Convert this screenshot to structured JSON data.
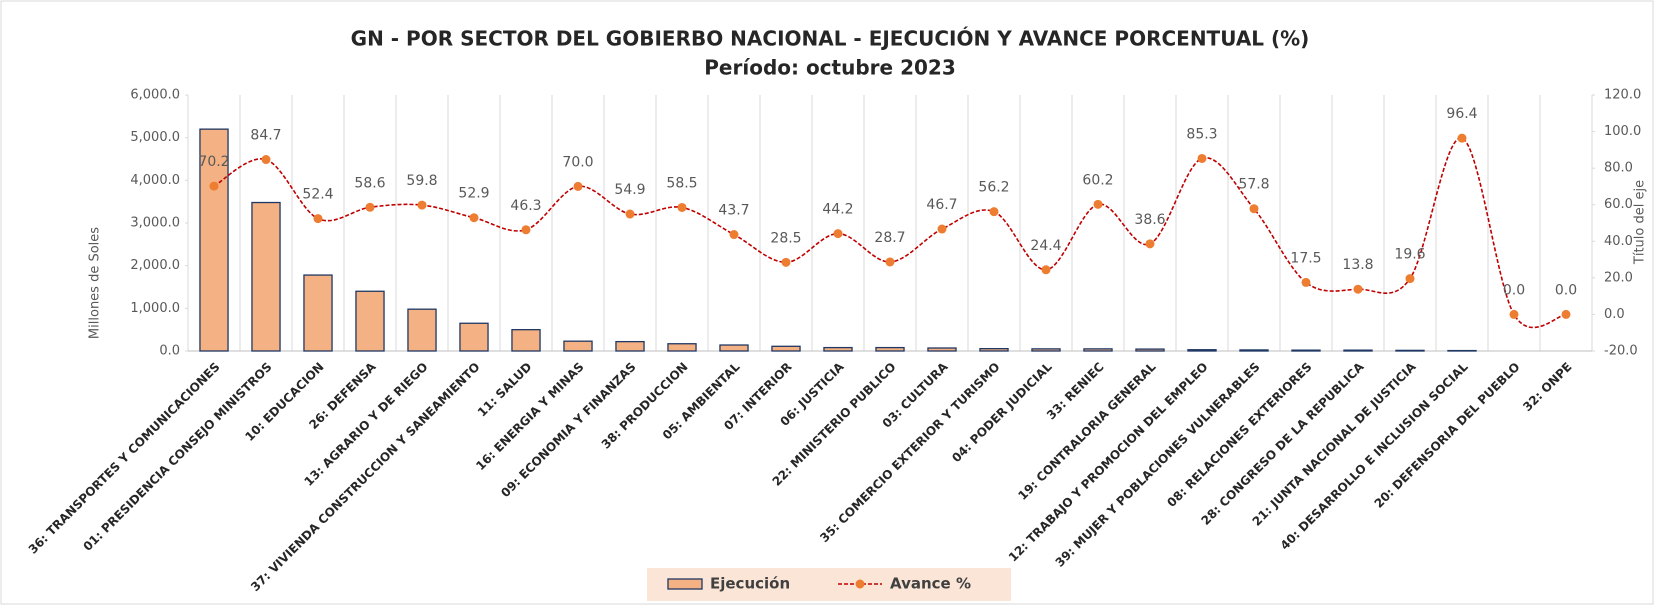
{
  "chart_data": {
    "type": "bar_line",
    "title": "GN - POR SECTOR DEL GOBIERBO NACIONAL - EJECUCIÓN Y AVANCE PORCENTUAL (%)",
    "subtitle": "Período: octubre 2023",
    "y_axis_label": "Millones de Soles",
    "y2_axis_label": "Título del eje",
    "categories": [
      "36: TRANSPORTES Y COMUNICACIONES",
      "01: PRESIDENCIA CONSEJO MINISTROS",
      "10: EDUCACION",
      "26: DEFENSA",
      "13: AGRARIO Y DE RIEGO",
      "37: VIVIENDA CONSTRUCCION Y SANEAMIENTO",
      "11: SALUD",
      "16: ENERGIA Y MINAS",
      "09: ECONOMIA Y FINANZAS",
      "38: PRODUCCION",
      "05: AMBIENTAL",
      "07: INTERIOR",
      "06: JUSTICIA",
      "22: MINISTERIO PUBLICO",
      "03: CULTURA",
      "35: COMERCIO EXTERIOR Y TURISMO",
      "04: PODER JUDICIAL",
      "33: RENIEC",
      "19: CONTRALORIA GENERAL",
      "12: TRABAJO Y PROMOCION DEL EMPLEO",
      "39: MUJER Y POBLACIONES VULNERABLES",
      "08: RELACIONES EXTERIORES",
      "28: CONGRESO DE LA REPUBLICA",
      "21: JUNTA NACIONAL DE JUSTICIA",
      "40: DESARROLLO E INCLUSION SOCIAL",
      "20: DEFENSORIA DEL PUEBLO",
      "32: ONPE"
    ],
    "series": [
      {
        "name": "Ejecución",
        "type": "bar",
        "color": "#f4b183",
        "edge_color": "#1f3864",
        "values": [
          5200,
          3480,
          1780,
          1400,
          980,
          650,
          500,
          230,
          220,
          170,
          140,
          110,
          80,
          80,
          70,
          55,
          50,
          50,
          45,
          30,
          25,
          20,
          20,
          15,
          10,
          0,
          0
        ]
      },
      {
        "name": "Avance %",
        "type": "line",
        "axis": "y2",
        "color": "#c00000",
        "marker_color": "#ed7d31",
        "values": [
          70.2,
          84.7,
          52.4,
          58.6,
          59.8,
          52.9,
          46.3,
          70.0,
          54.9,
          58.5,
          43.7,
          28.5,
          44.2,
          28.7,
          46.7,
          56.2,
          24.4,
          60.2,
          38.6,
          85.3,
          57.8,
          17.5,
          13.8,
          19.6,
          96.4,
          0.0,
          0.0
        ],
        "value_labels": [
          "70.2",
          "84.7",
          "52.4",
          "58.6",
          "59.8",
          "52.9",
          "46.3",
          "70.0",
          "54.9",
          "58.5",
          "43.7",
          "28.5",
          "44.2",
          "28.7",
          "46.7",
          "56.2",
          "24.4",
          "60.2",
          "38.6",
          "85.3",
          "57.8",
          "17.5",
          "13.8",
          "19.6",
          "96.4",
          "0.0",
          "0.0"
        ]
      }
    ],
    "ylim": [
      0,
      6000
    ],
    "yticks": [
      {
        "value": 0,
        "label": "0.0"
      },
      {
        "value": 1000,
        "label": "1,000.0"
      },
      {
        "value": 2000,
        "label": "2,000.0"
      },
      {
        "value": 3000,
        "label": "3,000.0"
      },
      {
        "value": 4000,
        "label": "4,000.0"
      },
      {
        "value": 5000,
        "label": "5,000.0"
      },
      {
        "value": 6000,
        "label": "6,000.0"
      }
    ],
    "y2lim": [
      -20,
      120
    ],
    "y2ticks": [
      {
        "value": -20,
        "label": "-20.0"
      },
      {
        "value": 0,
        "label": "0.0"
      },
      {
        "value": 20,
        "label": "20.0"
      },
      {
        "value": 40,
        "label": "40.0"
      },
      {
        "value": 60,
        "label": "60.0"
      },
      {
        "value": 80,
        "label": "80.0"
      },
      {
        "value": 100,
        "label": "100.0"
      },
      {
        "value": 120,
        "label": "120.0"
      }
    ],
    "legend": "bottom"
  }
}
